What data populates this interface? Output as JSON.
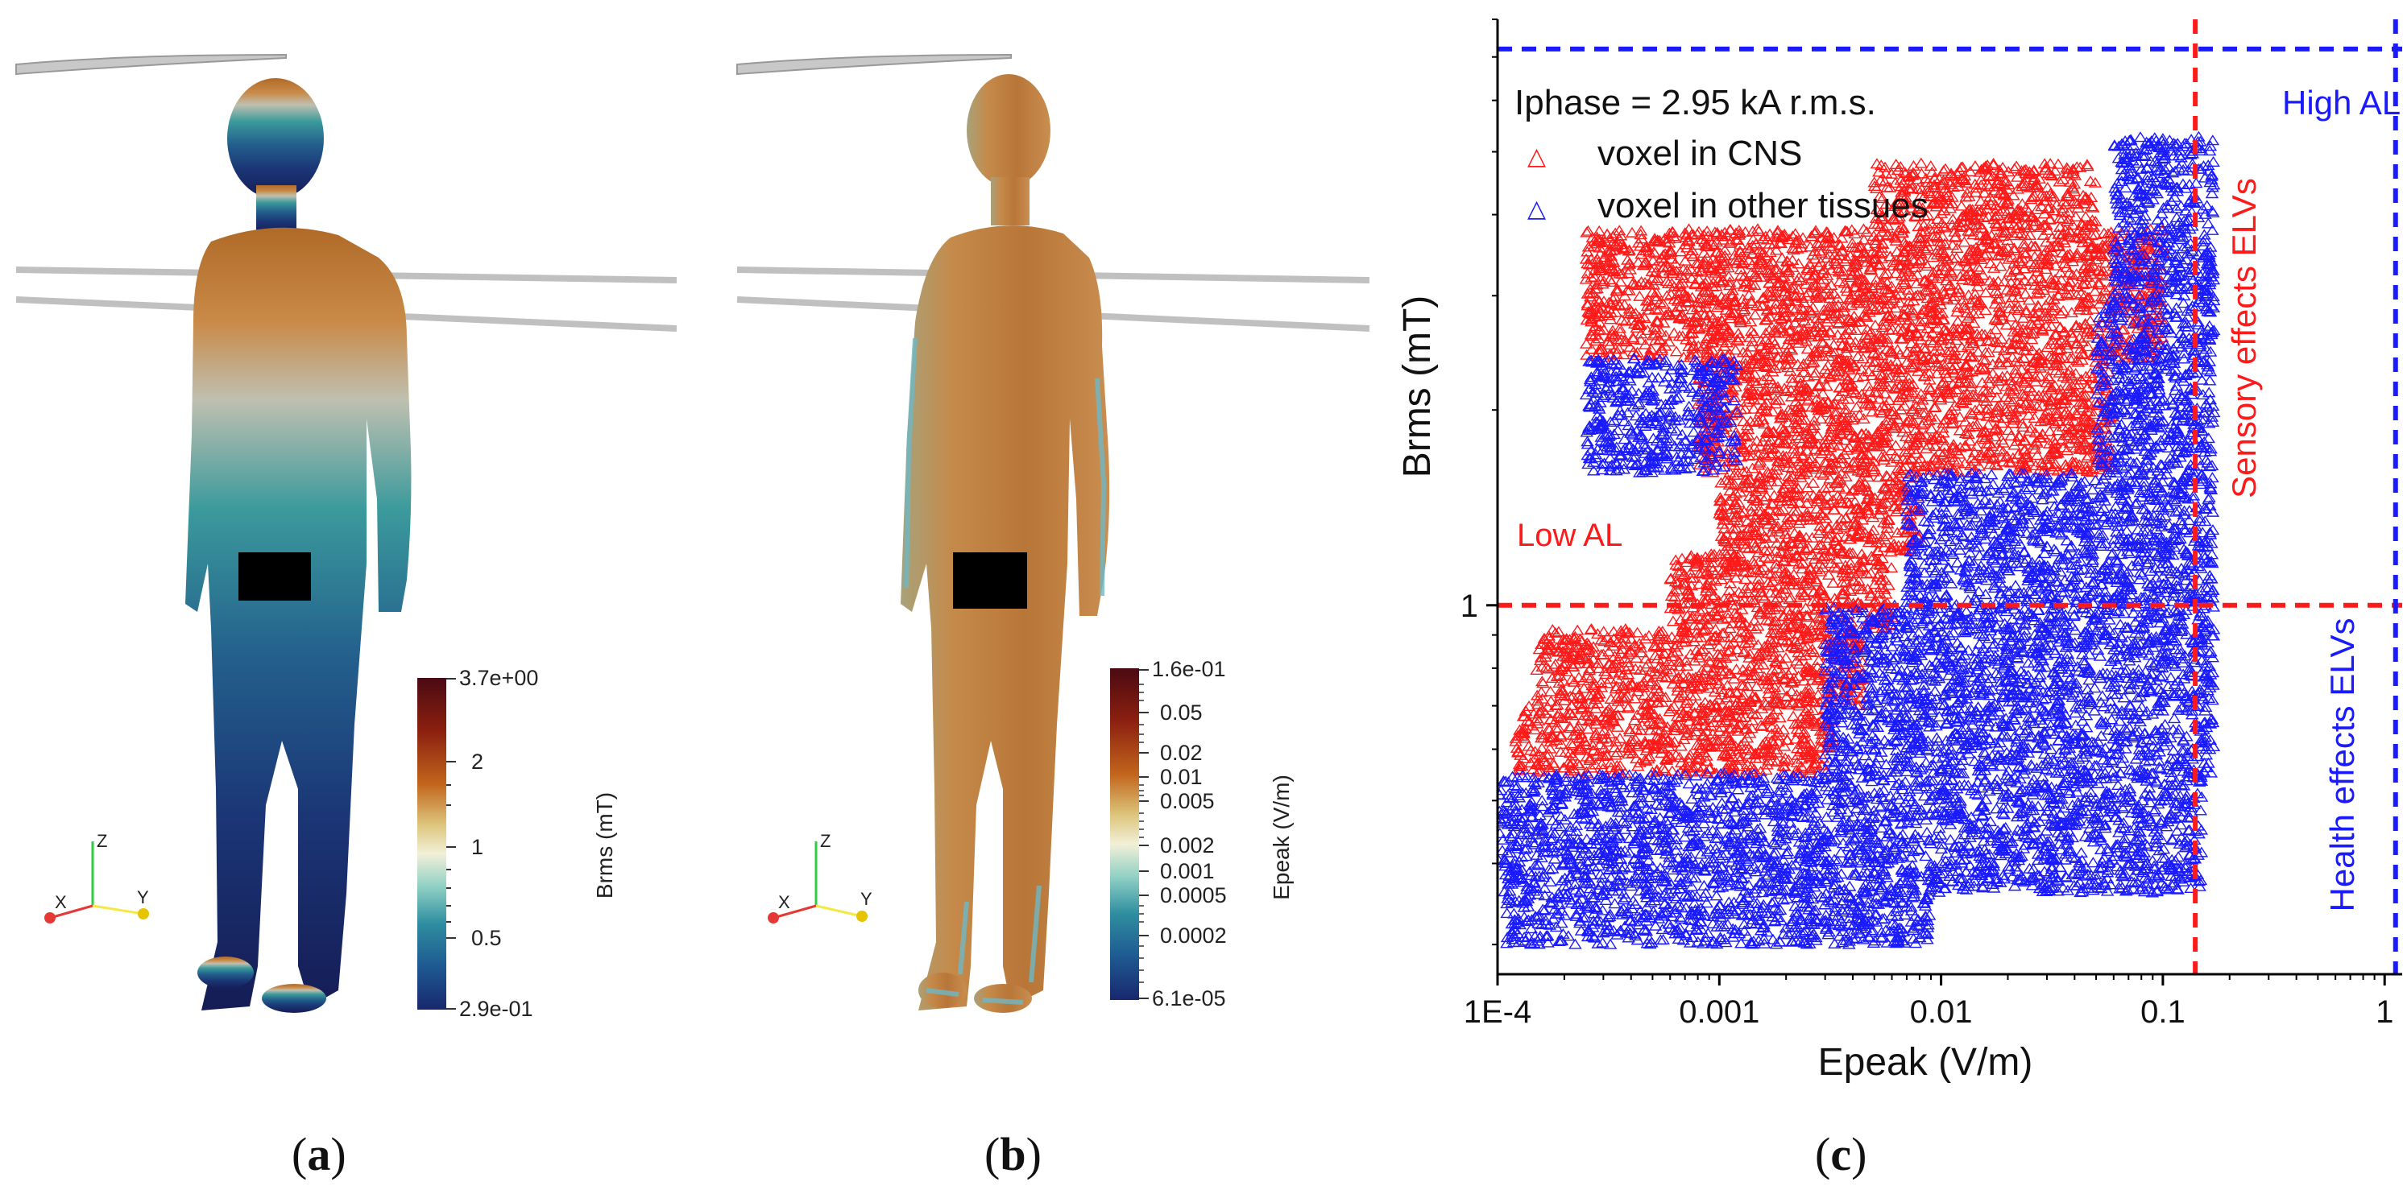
{
  "panel_a": {
    "caption_open": "(",
    "caption_letter": "a",
    "caption_close": ")",
    "colorbar": {
      "title": "Brms (mT)",
      "ticks": [
        "3.7e+00",
        "2",
        "1",
        "0.5",
        "2.9e-01"
      ],
      "colors": [
        "#4a0a12",
        "#8c2010",
        "#c2651c",
        "#dcc47a",
        "#f2f0d8",
        "#8fd0c4",
        "#2f8ea0",
        "#1f5d93",
        "#18286e"
      ]
    },
    "axes_triad": {
      "z": "Z",
      "x": "X",
      "y": "Y"
    }
  },
  "panel_b": {
    "caption_open": "(",
    "caption_letter": "b",
    "caption_close": ")",
    "colorbar": {
      "title": "Epeak (V/m)",
      "ticks": [
        "1.6e-01",
        "0.05",
        "0.02",
        "0.01",
        "0.005",
        "0.002",
        "0.001",
        "0.0005",
        "0.0002",
        "6.1e-05"
      ],
      "colors": [
        "#4a0a12",
        "#8c2010",
        "#c2651c",
        "#dcc47a",
        "#f2f0d8",
        "#8fd0c4",
        "#2f8ea0",
        "#1f5d93",
        "#18286e"
      ]
    },
    "axes_triad": {
      "z": "Z",
      "x": "X",
      "y": "Y"
    }
  },
  "panel_c": {
    "caption_open": "(",
    "caption_letter": "c",
    "caption_close": ")"
  },
  "chart_data": {
    "type": "scatter",
    "title": "",
    "xlabel": "Epeak (V/m)",
    "ylabel": "Brms (mT)",
    "xscale": "log",
    "yscale": "log",
    "xlim": [
      0.0001,
      1.2
    ],
    "ylim": [
      0.27,
      8.0
    ],
    "xticks": [
      0.0001,
      0.001,
      0.01,
      0.1,
      1
    ],
    "xtick_labels": [
      "1E-4",
      "0.001",
      "0.01",
      "0.1",
      "1"
    ],
    "yticks": [
      1
    ],
    "ytick_labels": [
      "1"
    ],
    "legend_title": "Iphase = 2.95 kA r.m.s.",
    "legend_position": "top-left",
    "series": [
      {
        "name": "voxel in CNS",
        "marker": "open-triangle",
        "color": "#ff1a1a",
        "bands": [
          {
            "y": [
              0.55,
              0.7
            ],
            "x": [
              0.00012,
              0.0033
            ]
          },
          {
            "y": [
              0.7,
              0.92
            ],
            "x": [
              0.00015,
              0.0045
            ]
          },
          {
            "y": [
              0.92,
              1.2
            ],
            "x": [
              0.0006,
              0.006
            ]
          },
          {
            "y": [
              1.2,
              1.6
            ],
            "x": [
              0.001,
              0.008
            ]
          },
          {
            "y": [
              1.6,
              2.4
            ],
            "x": [
              0.0008,
              0.06
            ]
          },
          {
            "y": [
              2.4,
              3.8
            ],
            "x": [
              0.00025,
              0.1
            ]
          },
          {
            "y": [
              3.8,
              4.8
            ],
            "x": [
              0.005,
              0.05
            ]
          }
        ]
      },
      {
        "name": "voxel in other tissues",
        "marker": "open-triangle",
        "color": "#1a1aff",
        "bands": [
          {
            "y": [
              0.3,
              0.36
            ],
            "x": [
              0.00011,
              0.009
            ]
          },
          {
            "y": [
              0.36,
              0.55
            ],
            "x": [
              0.0001,
              0.15
            ]
          },
          {
            "y": [
              0.55,
              1.0
            ],
            "x": [
              0.003,
              0.17
            ]
          },
          {
            "y": [
              1.0,
              1.6
            ],
            "x": [
              0.007,
              0.17
            ]
          },
          {
            "y": [
              1.6,
              2.4
            ],
            "x": [
              0.00025,
              0.0012
            ]
          },
          {
            "y": [
              1.6,
              3.0
            ],
            "x": [
              0.05,
              0.17
            ]
          },
          {
            "y": [
              3.0,
              5.3
            ],
            "x": [
              0.06,
              0.17
            ]
          }
        ]
      }
    ],
    "reference_lines": [
      {
        "orientation": "horizontal",
        "value": 1.0,
        "label": "Low AL",
        "color": "#ff1a1a"
      },
      {
        "orientation": "vertical",
        "value": 0.14,
        "label": "Sensory effects ELVs",
        "color": "#ff1a1a"
      },
      {
        "orientation": "horizontal",
        "value": 7.2,
        "label": "High AL",
        "color": "#1a1aff"
      },
      {
        "orientation": "vertical",
        "value": 1.12,
        "label": "Health effects ELVs",
        "color": "#1a1aff"
      }
    ]
  }
}
